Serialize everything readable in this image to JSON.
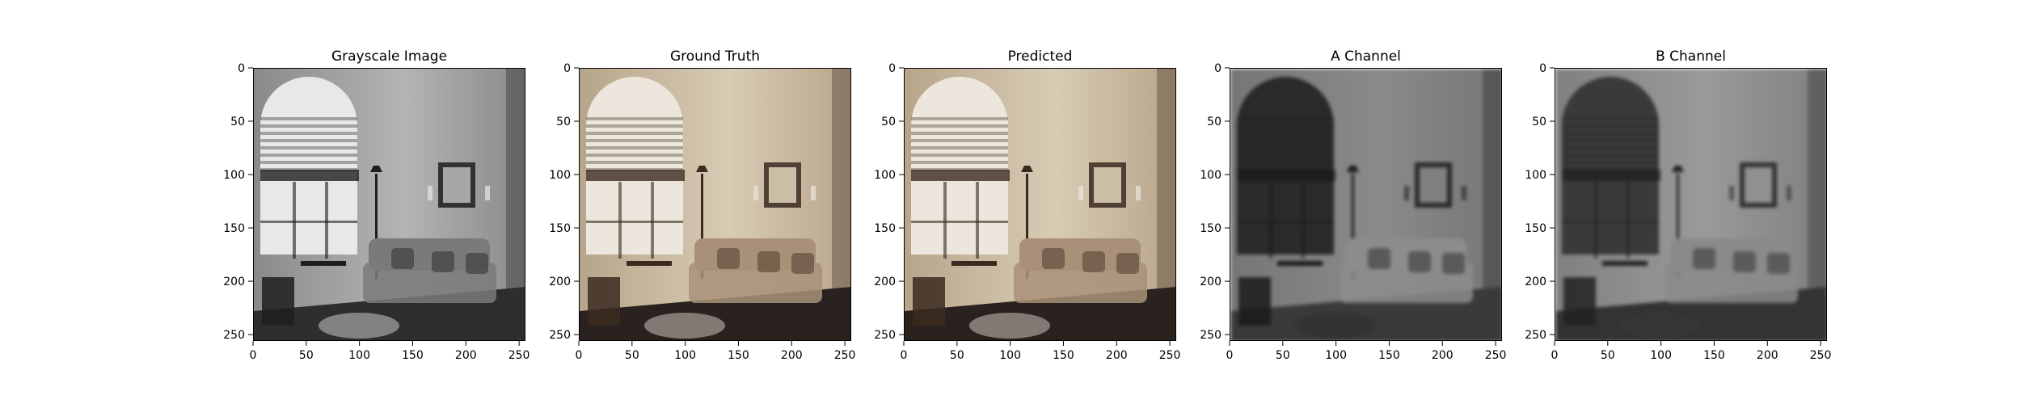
{
  "panels": [
    {
      "title": "Grayscale Image",
      "scene_palette": "grayscale"
    },
    {
      "title": "Ground Truth",
      "scene_palette": "color"
    },
    {
      "title": "Predicted",
      "scene_palette": "color"
    },
    {
      "title": "A Channel",
      "scene_palette": "channel-a"
    },
    {
      "title": "B Channel",
      "scene_palette": "channel-b"
    }
  ],
  "axes": {
    "x_ticks": [
      "0",
      "50",
      "100",
      "150",
      "200",
      "250"
    ],
    "y_ticks": [
      "0",
      "50",
      "100",
      "150",
      "200",
      "250"
    ],
    "x_tick_values": [
      0,
      50,
      100,
      150,
      200,
      250
    ],
    "y_tick_values": [
      0,
      50,
      100,
      150,
      200,
      250
    ],
    "range": [
      0,
      256
    ]
  },
  "colors": {
    "grayscale": {
      "wall": "#8a8a8a",
      "wall_light": "#b4b4b4",
      "window": "#e8e8e8",
      "floor": "#2e2e2e",
      "sofa": "#7a7a7a",
      "frame": "#1e1e1e"
    },
    "color": {
      "wall": "#b7a58b",
      "wall_light": "#d8ccb4",
      "window": "#ece6dc",
      "floor": "#2a221f",
      "sofa": "#a89178",
      "frame": "#3b2a20"
    },
    "channel-a": {
      "wall": "#767676",
      "wall_light": "#8a8a8a",
      "window": "#2a2a2a",
      "floor": "#3a3a3a",
      "sofa": "#8c8c8c",
      "frame": "#1a1a1a"
    },
    "channel-b": {
      "wall": "#808080",
      "wall_light": "#9a9a9a",
      "window": "#3a3a3a",
      "floor": "#333333",
      "sofa": "#8a8a8a",
      "frame": "#222222"
    }
  }
}
